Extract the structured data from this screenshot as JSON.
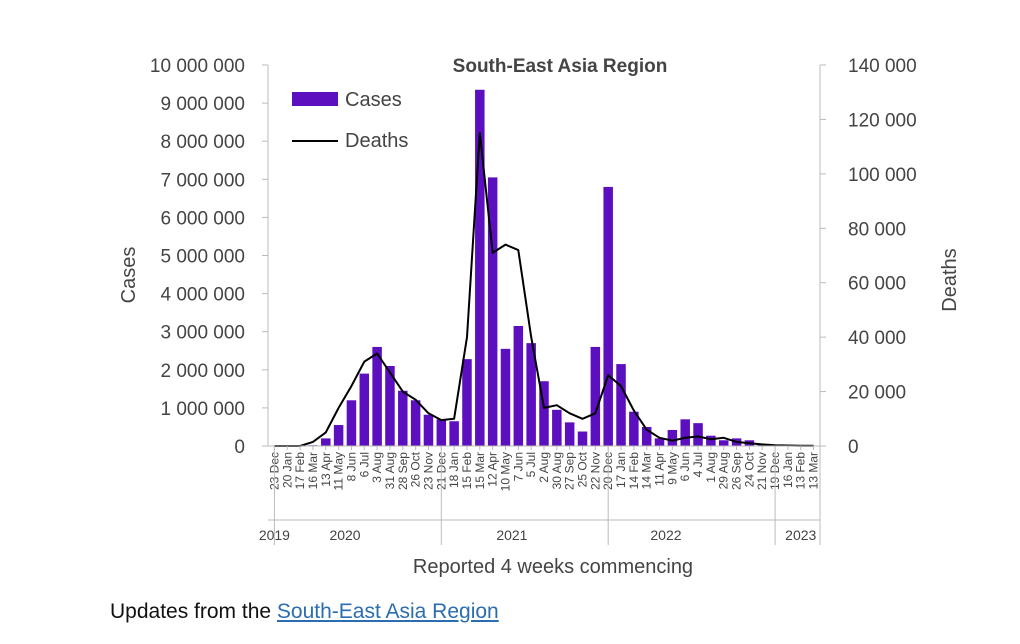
{
  "chart_data": {
    "type": "bar+line",
    "title": "South-East Asia Region",
    "xlabel": "Reported 4 weeks commencing",
    "ylabel_left": "Cases",
    "ylabel_right": "Deaths",
    "ylim_left": [
      0,
      10000000
    ],
    "ylim_right": [
      0,
      140000
    ],
    "yticks_left": [
      "0",
      "1 000 000",
      "2 000 000",
      "3 000 000",
      "4 000 000",
      "5 000 000",
      "6 000 000",
      "7 000 000",
      "8 000 000",
      "9 000 000",
      "10 000 000"
    ],
    "yticks_right": [
      "0",
      "20 000",
      "40 000",
      "60 000",
      "80 000",
      "100 000",
      "120 000",
      "140 000"
    ],
    "legend": {
      "position": "top-left",
      "items": [
        "Cases",
        "Deaths"
      ]
    },
    "categories": [
      "23 Dec",
      "20 Jan",
      "17 Feb",
      "16 Mar",
      "13 Apr",
      "11 May",
      "8 Jun",
      "6 Jul",
      "3 Aug",
      "31 Aug",
      "28 Sep",
      "26 Oct",
      "23 Nov",
      "21 Dec",
      "18 Jan",
      "15 Feb",
      "15 Mar",
      "12 Apr",
      "10 May",
      "7 Jun",
      "5 Jul",
      "2 Aug",
      "30 Aug",
      "27 Sep",
      "25 Oct",
      "22 Nov",
      "20 Dec",
      "17 Jan",
      "14 Feb",
      "14 Mar",
      "11 Apr",
      "9 May",
      "6 Jun",
      "4 Jul",
      "1 Aug",
      "29 Aug",
      "26 Sep",
      "24 Oct",
      "21 Nov",
      "19 Dec",
      "16 Jan",
      "13 Feb",
      "13 Mar"
    ],
    "year_labels": [
      {
        "label": "2019",
        "index": 0
      },
      {
        "label": "2020",
        "index": 5.5
      },
      {
        "label": "2021",
        "index": 18.5
      },
      {
        "label": "2022",
        "index": 30.5
      },
      {
        "label": "2023",
        "index": 41
      }
    ],
    "year_separators": [
      0.5,
      13.5,
      26.5,
      39.5
    ],
    "series": [
      {
        "name": "Cases",
        "kind": "bar",
        "axis": "left",
        "color": "#5b0fbe",
        "values": [
          0,
          0,
          0,
          20000,
          200000,
          550000,
          1200000,
          1900000,
          2600000,
          2100000,
          1450000,
          1200000,
          820000,
          700000,
          650000,
          2280000,
          9350000,
          7050000,
          2550000,
          3150000,
          2700000,
          1700000,
          950000,
          620000,
          380000,
          2600000,
          6800000,
          2150000,
          900000,
          500000,
          200000,
          420000,
          700000,
          600000,
          270000,
          150000,
          200000,
          150000,
          50000,
          20000,
          20000,
          10000,
          10000
        ]
      },
      {
        "name": "Deaths",
        "kind": "line",
        "axis": "right",
        "color": "#000000",
        "values": [
          0,
          0,
          0,
          1500,
          5000,
          14000,
          22000,
          31000,
          34000,
          27000,
          20000,
          17000,
          12000,
          9500,
          10000,
          40000,
          115000,
          71000,
          74000,
          72000,
          40000,
          14000,
          15000,
          12000,
          10000,
          12000,
          26000,
          22000,
          13000,
          6000,
          3000,
          2000,
          3000,
          3500,
          2500,
          3000,
          1500,
          1000,
          600,
          300,
          200,
          100,
          100
        ]
      }
    ]
  },
  "footer": {
    "prefix": "Updates from the ",
    "link_text": "South-East Asia Region"
  }
}
